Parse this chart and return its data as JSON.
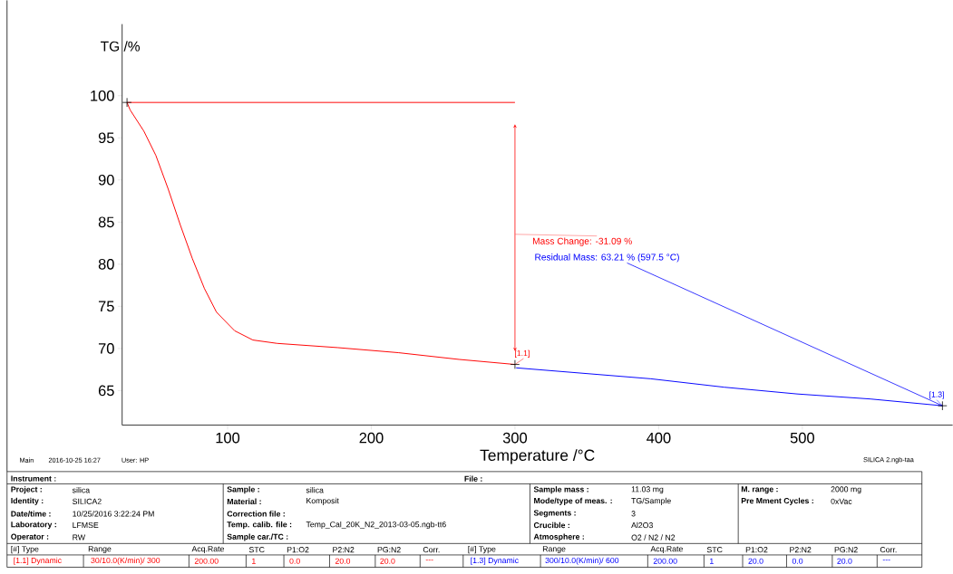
{
  "chart_data": {
    "type": "line",
    "xlabel": "Temperature /°C",
    "ylabel": "TG /%",
    "xlim": [
      26.6,
      604.6
    ],
    "ylim": [
      60.9,
      108.5
    ],
    "xticks": [
      100,
      200,
      300,
      400,
      500
    ],
    "yticks": [
      65,
      70,
      75,
      80,
      85,
      90,
      95,
      100
    ],
    "series": [
      {
        "color": "#ff0000",
        "x": [
          30,
          32.2,
          41.7,
          50.1,
          58.5,
          67,
          75.4,
          83.9,
          92.3,
          104.9,
          117.6,
          134.5,
          176.5,
          218.8,
          261,
          300
        ],
        "values": [
          99.2,
          98.3,
          95.8,
          92.9,
          89.0,
          84.7,
          80.7,
          77.1,
          74.3,
          72.1,
          71.0,
          70.6,
          70.1,
          69.5,
          68.7,
          68.1
        ]
      },
      {
        "color": "#0000ff",
        "x": [
          300.8,
          394.6,
          445.6,
          496.3,
          547.5,
          597.5
        ],
        "values": [
          67.7,
          66.4,
          65.4,
          64.6,
          64.0,
          63.2
        ]
      },
      {
        "color": "#ff0000",
        "x": [
          30,
          300
        ],
        "values": [
          99.2,
          99.2
        ]
      }
    ],
    "annotations": [
      "Mass Change: -31.09 %",
      "Residual Mass: 63.21 % (597.5 °C)",
      "[1.1]",
      "[1.3]",
      "Main",
      "2016-10-25 16:27",
      "User: HP",
      "SILICA 2.ngb-taa",
      "Instrument :",
      "File :",
      "Project :",
      "silica",
      "Identity :",
      "SILICA2",
      "Date/time :",
      "10/25/2016 3:22:24 PM",
      "Laboratory :",
      "LFMSE",
      "Operator :",
      "RW",
      "Sample :",
      "silica",
      "Material :",
      "Komposit",
      "Correction file :",
      "Temp. calib. file :",
      "Temp_Cal_20K_N2_2013-03-05.ngb-tt6",
      "Sample car./TC :",
      "Sample mass :",
      "11.03 mg",
      "Mode/type of meas. :",
      "TG/Sample",
      "Segments :",
      "3",
      "Crucible :",
      "Al2O3",
      "Atmosphere :",
      "O2 / N2 / N2",
      "M. range :",
      "2000 mg",
      "Pre Mment Cycles :",
      "0xVac",
      "[#] Type",
      "Range",
      "Acq.Rate",
      "STC",
      "P1:O2",
      "P2:N2",
      "PG:N2",
      "Corr.",
      "[#] Type",
      "Range",
      "Acq.Rate",
      "STC",
      "P1:O2",
      "P2:N2",
      "PG:N2",
      "Corr.",
      "[1.1] Dynamic",
      "30/10.0(K/min)/ 300",
      "200.00",
      "1",
      "0.0",
      "20.0",
      "20.0",
      "---",
      "[1.3] Dynamic",
      "300/10.0(K/min)/ 600",
      "200.00",
      "1",
      "20.0",
      "0.0",
      "20.0",
      "---"
    ]
  }
}
